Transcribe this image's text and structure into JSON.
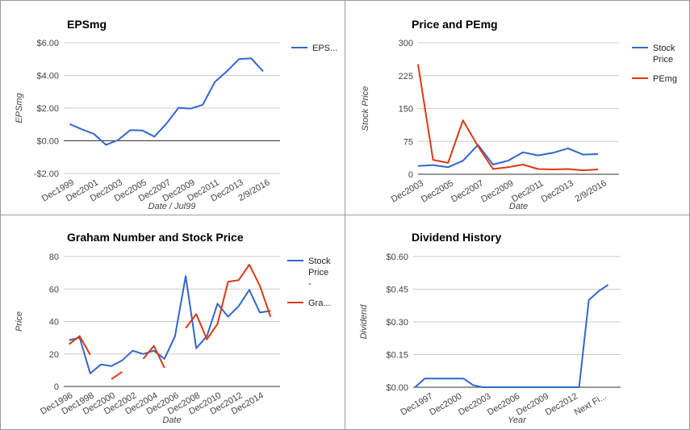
{
  "colors": {
    "blue": "#3366cc",
    "red": "#dc3912",
    "axis": "#333333",
    "grid": "#cccccc",
    "label": "#444444"
  },
  "chart_data": [
    {
      "type": "line",
      "title": "EPSmg",
      "xlabel": "Date / Jul99",
      "ylabel": "EPSmg",
      "legend": "right",
      "grid": true,
      "ylim": [
        -2,
        6
      ],
      "yticks": [
        -2,
        0,
        2,
        4,
        6
      ],
      "yticklabels": [
        "-$2.00",
        "$0.00",
        "$2.00",
        "$4.00",
        "$6.00"
      ],
      "xlim": [
        1999,
        2016.9
      ],
      "xticks": [
        {
          "label": "Dec1999",
          "x": 1999.9
        },
        {
          "label": "Dec2001",
          "x": 2001.9
        },
        {
          "label": "Dec2003",
          "x": 2003.9
        },
        {
          "label": "Dec2005",
          "x": 2005.9
        },
        {
          "label": "Dec2007",
          "x": 2007.9
        },
        {
          "label": "Dec2009",
          "x": 2009.9
        },
        {
          "label": "Dec2011",
          "x": 2011.9
        },
        {
          "label": "Dec2013",
          "x": 2013.9
        },
        {
          "label": "2/9/2016",
          "x": 2016.1
        }
      ],
      "series": [
        {
          "name": "EPS...",
          "color": "blue",
          "points": [
            [
              1999.5,
              1.02
            ],
            [
              2000.5,
              0.7
            ],
            [
              2001.5,
              0.42
            ],
            [
              2002.5,
              -0.25
            ],
            [
              2003.5,
              0.05
            ],
            [
              2004.5,
              0.65
            ],
            [
              2005.5,
              0.63
            ],
            [
              2006.5,
              0.25
            ],
            [
              2007.5,
              1.05
            ],
            [
              2008.5,
              2.02
            ],
            [
              2009.5,
              1.97
            ],
            [
              2010.5,
              2.2
            ],
            [
              2011.5,
              3.6
            ],
            [
              2012.5,
              4.25
            ],
            [
              2013.5,
              5.0
            ],
            [
              2014.5,
              5.05
            ],
            [
              2015.5,
              4.25
            ]
          ]
        }
      ]
    },
    {
      "type": "line",
      "title": "Price and PEmg",
      "xlabel": "Date",
      "ylabel": "Stock Price",
      "legend": "right",
      "grid": true,
      "ylim": [
        0,
        300
      ],
      "yticks": [
        0,
        75,
        150,
        225,
        300
      ],
      "yticklabels": [
        "0",
        "75",
        "150",
        "225",
        "300"
      ],
      "xlim": [
        2003.5,
        2016.9
      ],
      "xticks": [
        {
          "label": "Dec2003",
          "x": 2003.9
        },
        {
          "label": "Dec2005",
          "x": 2005.9
        },
        {
          "label": "Dec2007",
          "x": 2007.9
        },
        {
          "label": "Dec2009",
          "x": 2009.9
        },
        {
          "label": "Dec2011",
          "x": 2011.9
        },
        {
          "label": "Dec2013",
          "x": 2013.9
        },
        {
          "label": "2/9/2016",
          "x": 2016.1
        }
      ],
      "series": [
        {
          "name": "Stock Price",
          "color": "blue",
          "points": [
            [
              2003.5,
              19
            ],
            [
              2004.5,
              21
            ],
            [
              2005.5,
              16
            ],
            [
              2006.5,
              31
            ],
            [
              2007.5,
              67
            ],
            [
              2008.5,
              22
            ],
            [
              2009.5,
              31
            ],
            [
              2010.5,
              50
            ],
            [
              2011.5,
              43
            ],
            [
              2012.5,
              49
            ],
            [
              2013.5,
              59
            ],
            [
              2014.5,
              45
            ],
            [
              2015.5,
              46
            ]
          ]
        },
        {
          "name": "PEmg",
          "color": "red",
          "points": [
            [
              2003.5,
              251
            ],
            [
              2004.5,
              33
            ],
            [
              2005.5,
              26
            ],
            [
              2006.5,
              123
            ],
            [
              2007.5,
              64
            ],
            [
              2008.5,
              12
            ],
            [
              2009.5,
              16
            ],
            [
              2010.5,
              22
            ],
            [
              2011.5,
              12
            ],
            [
              2012.5,
              11
            ],
            [
              2013.5,
              12
            ],
            [
              2014.5,
              9
            ],
            [
              2015.5,
              11
            ]
          ]
        }
      ]
    },
    {
      "type": "line",
      "title": "Graham Number and Stock Price",
      "xlabel": "Date",
      "ylabel": "Price",
      "legend": "right",
      "grid": true,
      "ylim": [
        0,
        80
      ],
      "yticks": [
        0,
        20,
        40,
        60,
        80
      ],
      "yticklabels": [
        "0",
        "20",
        "40",
        "60",
        "80"
      ],
      "xlim": [
        1996,
        2016.4
      ],
      "xticks": [
        {
          "label": "Dec1996",
          "x": 1996.9
        },
        {
          "label": "Dec1998",
          "x": 1998.9
        },
        {
          "label": "Dec2000",
          "x": 2000.9
        },
        {
          "label": "Dec2002",
          "x": 2002.9
        },
        {
          "label": "Dec2004",
          "x": 2004.9
        },
        {
          "label": "Dec2006",
          "x": 2006.9
        },
        {
          "label": "Dec2008",
          "x": 2008.9
        },
        {
          "label": "Dec2010",
          "x": 2010.9
        },
        {
          "label": "Dec2012",
          "x": 2012.9
        },
        {
          "label": "Dec2014",
          "x": 2014.9
        }
      ],
      "series": [
        {
          "name": "Stock Price -",
          "color": "blue",
          "points": [
            [
              1996.5,
              28.5
            ],
            [
              1997.5,
              30
            ],
            [
              1998.5,
              8
            ],
            [
              1999.5,
              13.5
            ],
            [
              2000.5,
              12.5
            ],
            [
              2001.5,
              16
            ],
            [
              2002.5,
              22
            ],
            [
              2003.5,
              20
            ],
            [
              2004.5,
              22
            ],
            [
              2005.5,
              17
            ],
            [
              2006.5,
              31
            ],
            [
              2007.5,
              68
            ],
            [
              2008.5,
              23.5
            ],
            [
              2009.5,
              31
            ],
            [
              2010.5,
              51
            ],
            [
              2011.5,
              43
            ],
            [
              2012.5,
              49.5
            ],
            [
              2013.5,
              59.5
            ],
            [
              2014.5,
              45.5
            ],
            [
              2015.5,
              46.5
            ]
          ]
        },
        {
          "name": "Gra...",
          "color": "red",
          "points": [
            [
              1996.5,
              26
            ],
            [
              1997.5,
              31
            ],
            [
              1998.5,
              19.5
            ],
            [
              1999.5,
              null
            ],
            [
              2000.5,
              4.5
            ],
            [
              2001.5,
              9
            ],
            [
              2002.5,
              null
            ],
            [
              2003.5,
              17
            ],
            [
              2004.5,
              25
            ],
            [
              2005.5,
              11.5
            ],
            [
              2006.5,
              null
            ],
            [
              2007.5,
              36
            ],
            [
              2008.5,
              44.5
            ],
            [
              2009.5,
              29
            ],
            [
              2010.5,
              38.5
            ],
            [
              2011.5,
              64.5
            ],
            [
              2012.5,
              65.5
            ],
            [
              2013.5,
              75
            ],
            [
              2014.5,
              62
            ],
            [
              2015.5,
              43
            ]
          ]
        }
      ]
    },
    {
      "type": "line",
      "title": "Dividend History",
      "xlabel": "Year",
      "ylabel": "Dividend",
      "legend": "none",
      "grid": true,
      "ylim": [
        0,
        0.6
      ],
      "yticks": [
        0,
        0.15,
        0.3,
        0.45,
        0.6
      ],
      "yticklabels": [
        "$0.00",
        "$0.15",
        "$0.30",
        "$0.45",
        "$0.60"
      ],
      "xlim": [
        1995.8,
        2017.3
      ],
      "xticks": [
        {
          "label": "Dec1997",
          "x": 1997.9
        },
        {
          "label": "Dec2000",
          "x": 2000.9
        },
        {
          "label": "Dec2003",
          "x": 2003.9
        },
        {
          "label": "Dec2006",
          "x": 2006.9
        },
        {
          "label": "Dec2009",
          "x": 2009.9
        },
        {
          "label": "Dec2012",
          "x": 2012.9
        },
        {
          "label": "Next Fi...",
          "x": 2015.9
        }
      ],
      "series": [
        {
          "name": "",
          "color": "blue",
          "points": [
            [
              1996,
              0
            ],
            [
              1997,
              0.04
            ],
            [
              1998,
              0.04
            ],
            [
              1999,
              0.04
            ],
            [
              2000,
              0.04
            ],
            [
              2001,
              0.04
            ],
            [
              2002,
              0.01
            ],
            [
              2003,
              0
            ],
            [
              2004,
              0
            ],
            [
              2005,
              0
            ],
            [
              2006,
              0
            ],
            [
              2007,
              0
            ],
            [
              2008,
              0
            ],
            [
              2009,
              0
            ],
            [
              2010,
              0
            ],
            [
              2011,
              0
            ],
            [
              2012,
              0
            ],
            [
              2013,
              0
            ],
            [
              2014,
              0.4
            ],
            [
              2015,
              0.44
            ],
            [
              2016,
              0.47
            ]
          ]
        }
      ]
    }
  ]
}
